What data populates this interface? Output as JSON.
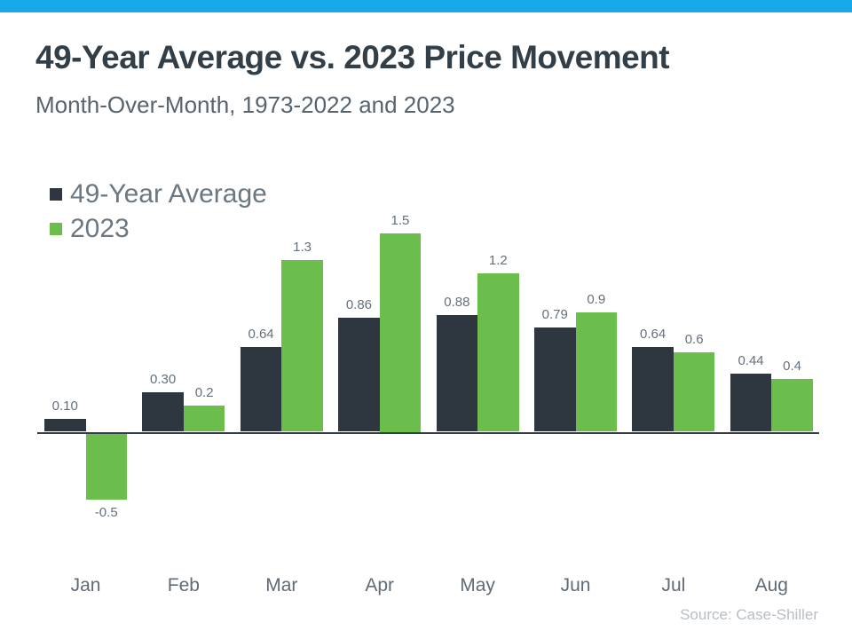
{
  "theme": {
    "top_bar_color": "#16A8E8",
    "title_color": "#333F48",
    "subtitle_color": "#57636D",
    "legend_text_color": "#6B7781",
    "value_label_color": "#64707C",
    "month_label_color": "#5F6B76",
    "axis_color": "#333D47",
    "source_color": "#B7BEC6",
    "series1_color": "#2E3740",
    "series2_color": "#6CBE4C"
  },
  "header": {
    "title": "49-Year Average vs. 2023 Price Movement",
    "subtitle": "Month-Over-Month, 1973-2022 and 2023"
  },
  "legend": {
    "items": [
      {
        "label": "49-Year Average",
        "color": "#2E3740"
      },
      {
        "label": "2023",
        "color": "#6CBE4C"
      }
    ]
  },
  "source": {
    "text": "Source: Case-Shiller"
  },
  "chart_data": {
    "type": "bar",
    "title": "49-Year Average vs. 2023 Price Movement",
    "subtitle": "Month-Over-Month, 1973-2022 and 2023",
    "xlabel": "",
    "ylabel": "",
    "categories": [
      "Jan",
      "Feb",
      "Mar",
      "Apr",
      "May",
      "Jun",
      "Jul",
      "Aug"
    ],
    "series": [
      {
        "name": "49-Year Average",
        "color": "#2E3740",
        "values": [
          0.1,
          0.3,
          0.64,
          0.86,
          0.88,
          0.79,
          0.64,
          0.44
        ],
        "labels": [
          "0.10",
          "0.30",
          "0.64",
          "0.86",
          "0.88",
          "0.79",
          "0.64",
          "0.44"
        ]
      },
      {
        "name": "2023",
        "color": "#6CBE4C",
        "values": [
          -0.5,
          0.2,
          1.3,
          1.5,
          1.2,
          0.9,
          0.6,
          0.4
        ],
        "labels": [
          "-0.5",
          "0.2",
          "1.3",
          "1.5",
          "1.2",
          "0.9",
          "0.6",
          "0.4"
        ]
      }
    ],
    "ylim": [
      -0.7,
      1.7
    ],
    "grid": false,
    "y_axis_shown": false,
    "value_labels_shown": true,
    "legend_position": "top-left"
  }
}
